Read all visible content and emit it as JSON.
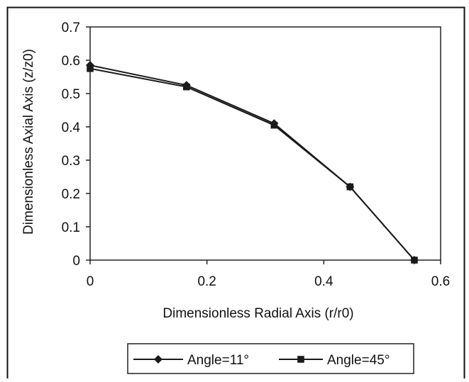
{
  "chart_data": {
    "type": "line",
    "xlabel": "Dimensionless Radial Axis (r/r0)",
    "ylabel": "Dimensionless Axial Axis (z/z0)",
    "xlim": [
      0,
      0.6
    ],
    "ylim": [
      0,
      0.7
    ],
    "x_ticks": [
      "0",
      "0.2",
      "0.4",
      "0.6"
    ],
    "y_ticks": [
      "0",
      "0.1",
      "0.2",
      "0.3",
      "0.4",
      "0.5",
      "0.6",
      "0.7"
    ],
    "grid": false,
    "legend_position": "bottom",
    "series": [
      {
        "name": "Angle=11°",
        "marker": "diamond",
        "color": "#1a1a1a",
        "x": [
          0.0,
          0.165,
          0.315,
          0.445,
          0.555
        ],
        "y": [
          0.585,
          0.525,
          0.41,
          0.22,
          0.0
        ]
      },
      {
        "name": "Angle=45°",
        "marker": "square",
        "color": "#1a1a1a",
        "x": [
          0.0,
          0.165,
          0.315,
          0.445,
          0.555
        ],
        "y": [
          0.575,
          0.52,
          0.405,
          0.22,
          0.0
        ]
      }
    ]
  }
}
